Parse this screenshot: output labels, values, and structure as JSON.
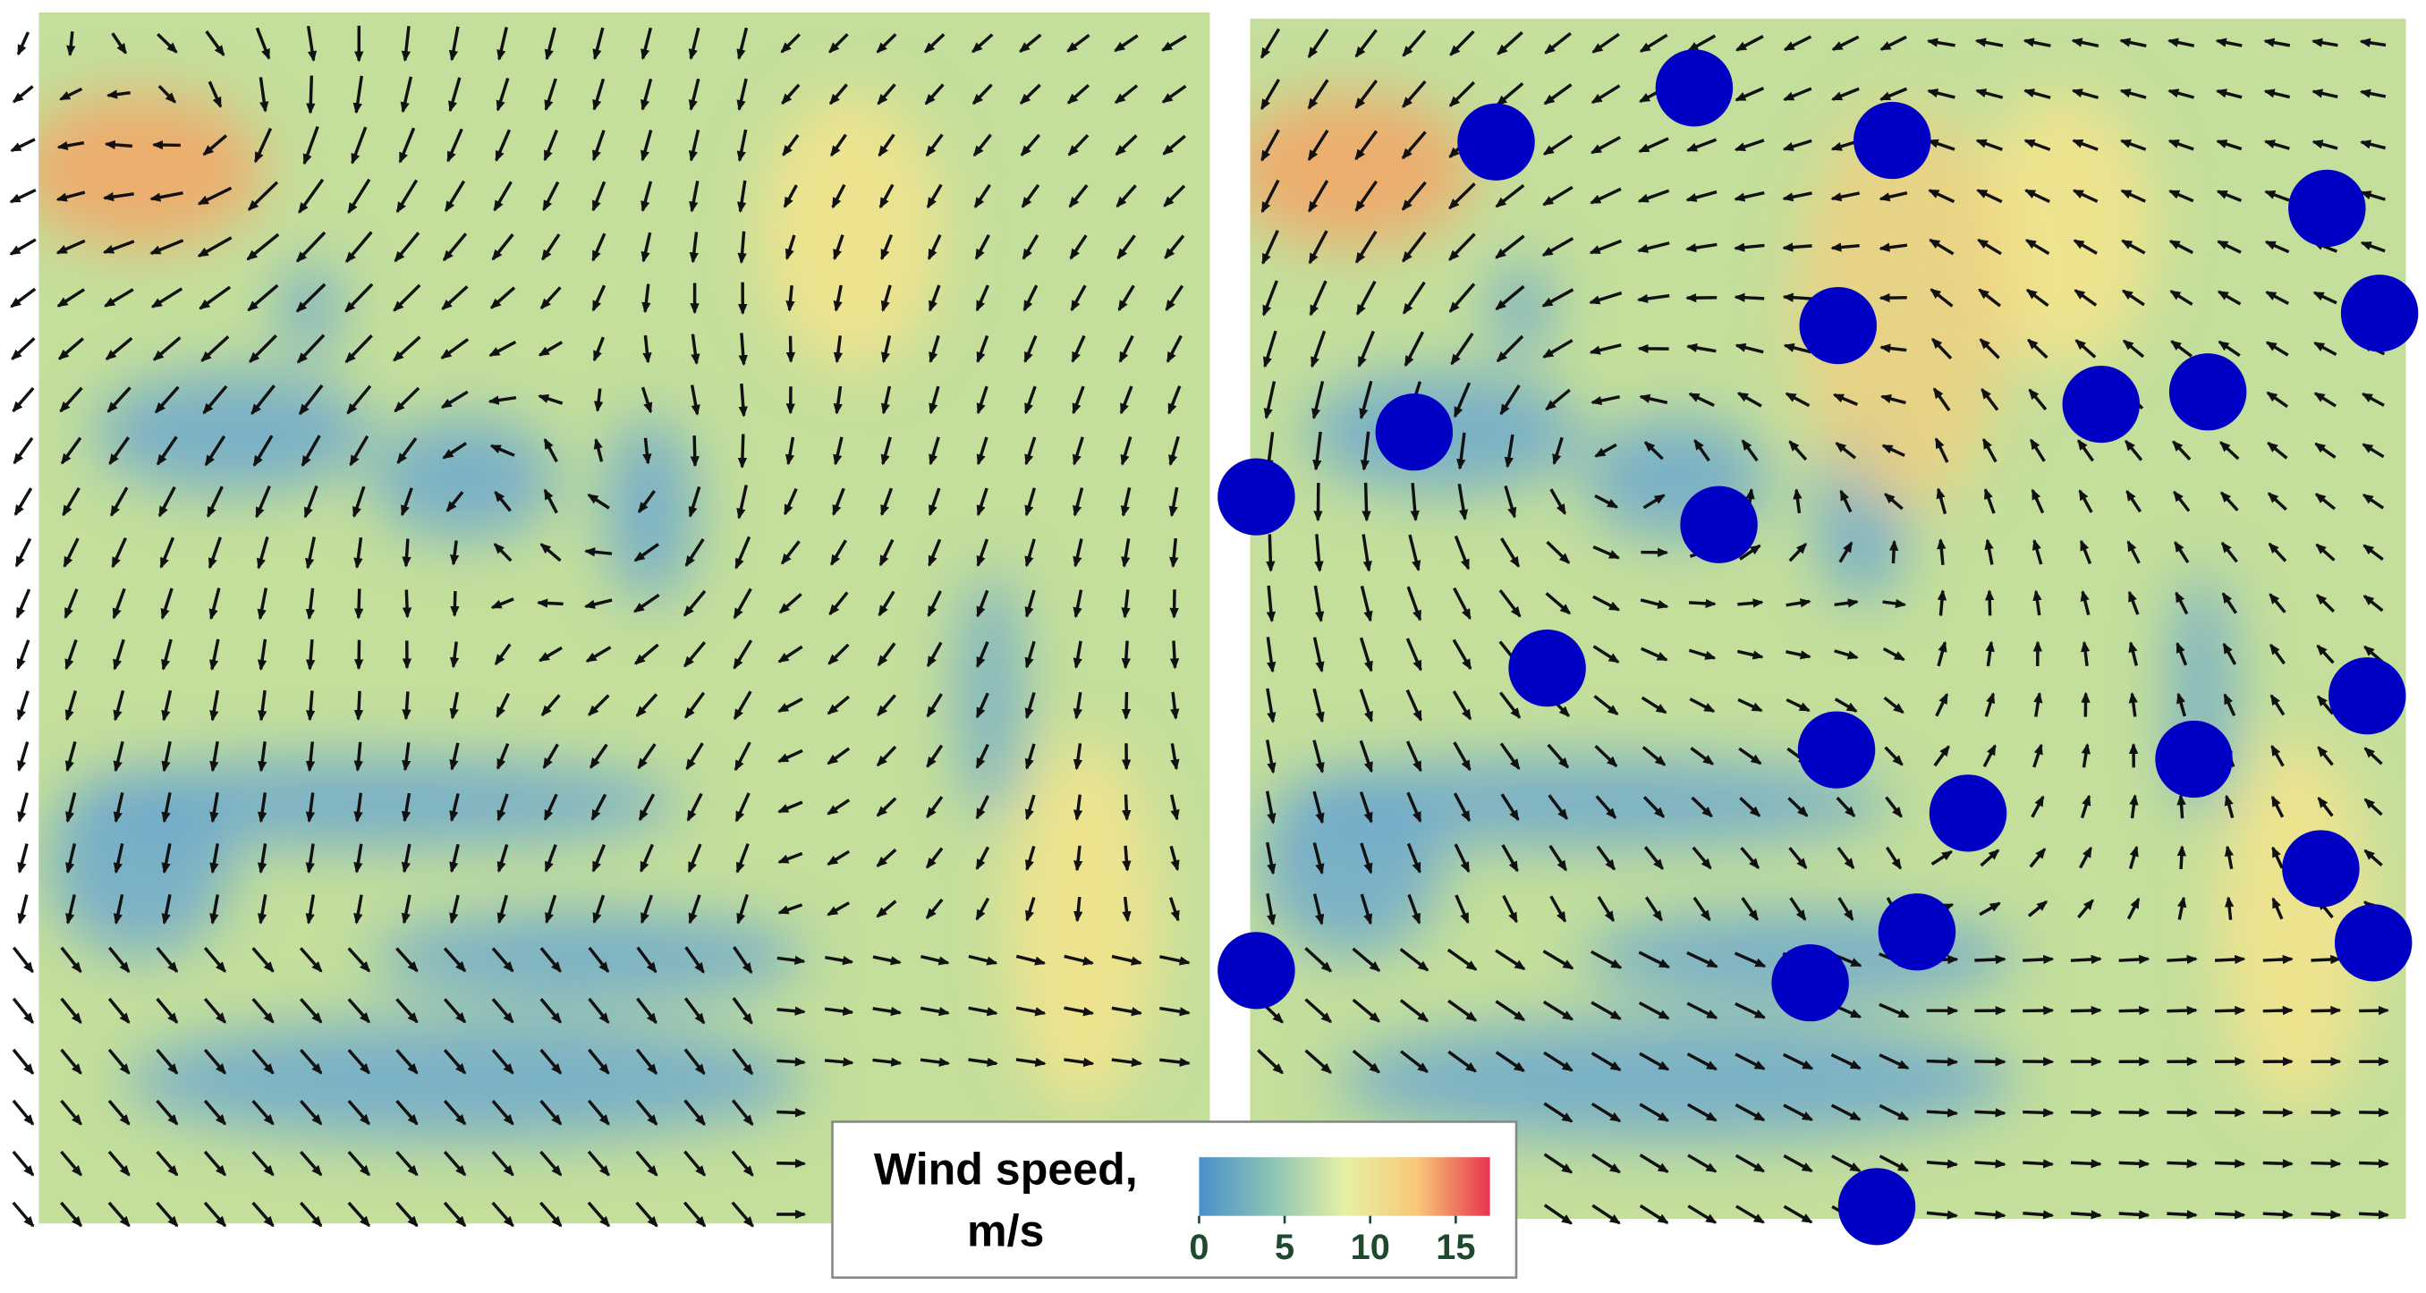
{
  "chart_data": {
    "type": "colorbar",
    "title": [
      "Wind speed,",
      "m/s"
    ],
    "xlim": [
      0,
      17
    ],
    "xticks": [
      0,
      5,
      10,
      15
    ],
    "colors": [
      "#4a8fca",
      "#8cc4b4",
      "#e6f0a4",
      "#f8c878",
      "#e8344c"
    ]
  }
}
